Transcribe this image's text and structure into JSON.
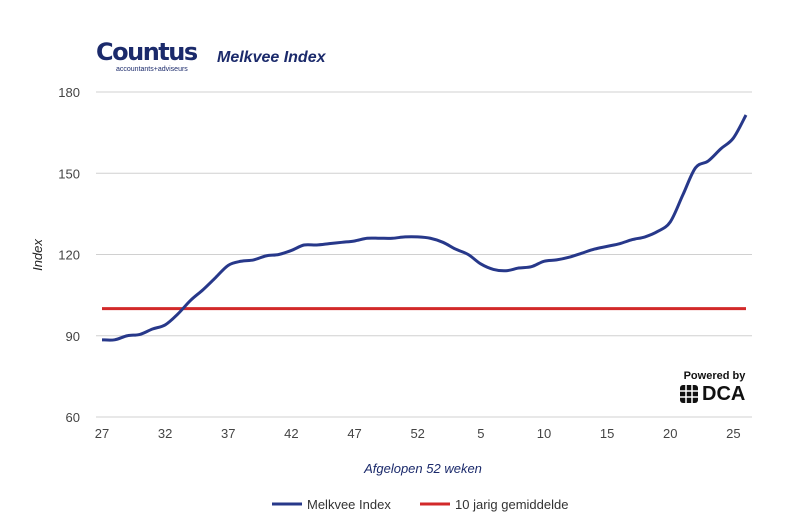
{
  "header": {
    "logo_name": "Countus",
    "logo_tagline": "accountants+adviseurs",
    "title": "Melkvee Index"
  },
  "branding": {
    "powered_by": "Powered by",
    "brand": "DCA"
  },
  "chart_data": {
    "type": "line",
    "title": "Melkvee Index",
    "xlabel": "Afgelopen 52 weken",
    "ylabel": "Index",
    "ylim": [
      60,
      180
    ],
    "yticks": [
      60,
      90,
      120,
      150,
      180
    ],
    "grid": true,
    "legend_placement": "bottom",
    "x": [
      27,
      28,
      29,
      30,
      31,
      32,
      33,
      34,
      35,
      36,
      37,
      38,
      39,
      40,
      41,
      42,
      43,
      44,
      45,
      46,
      47,
      48,
      49,
      50,
      51,
      52,
      1,
      2,
      3,
      4,
      5,
      6,
      7,
      8,
      9,
      10,
      11,
      12,
      13,
      14,
      15,
      16,
      17,
      18,
      19,
      20,
      21,
      22,
      23,
      24,
      25,
      26
    ],
    "xtick_labels": [
      "27",
      "32",
      "37",
      "42",
      "47",
      "52",
      "5",
      "10",
      "15",
      "20",
      "25"
    ],
    "series": [
      {
        "name": "Melkvee Index",
        "color": "#27388a",
        "values": [
          88.5,
          88.5,
          90,
          90.5,
          92.5,
          94,
          98,
          103,
          107,
          111.5,
          116,
          117.5,
          118,
          119.5,
          120,
          121.5,
          123.5,
          123.5,
          124,
          124.5,
          125,
          126,
          126,
          126,
          126.5,
          126.5,
          126,
          124.5,
          122,
          120,
          116.5,
          114.5,
          114,
          115,
          115.5,
          117.5,
          118,
          119,
          120.5,
          122,
          123,
          124,
          125.5,
          126.5,
          128.5,
          132,
          142,
          152,
          154.5,
          159,
          163,
          171.5
        ]
      },
      {
        "name": "10 jarig gemiddelde",
        "color": "#d2292a",
        "values": "constant",
        "constant": 100
      }
    ]
  }
}
